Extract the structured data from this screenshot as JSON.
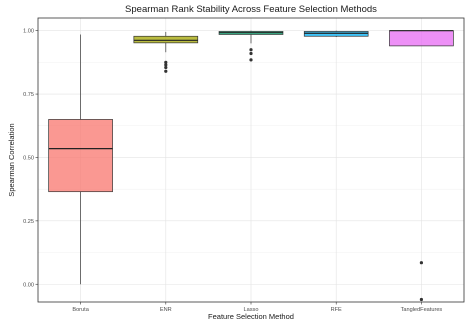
{
  "chart_data": {
    "type": "box",
    "title": "Spearman Rank Stability Across Feature Selection Methods",
    "xlabel": "Feature Selection Method",
    "ylabel": "Spearman Correlation",
    "ylim": [
      -0.07,
      1.05
    ],
    "yticks": [
      0.0,
      0.25,
      0.5,
      0.75,
      1.0
    ],
    "ytick_labels": [
      "0.00",
      "0.25",
      "0.50",
      "0.75",
      "1.00"
    ],
    "grid": true,
    "legend": "none",
    "categories": [
      "Boruta",
      "ENR",
      "Lasso",
      "RFE",
      "TangledFeatures"
    ],
    "boxes": [
      {
        "category": "Boruta",
        "min": 0.0,
        "q1": 0.365,
        "median": 0.535,
        "q3": 0.65,
        "max": 0.985,
        "outliers": [],
        "color": "#f8766d"
      },
      {
        "category": "ENR",
        "min": 0.915,
        "q1": 0.952,
        "median": 0.962,
        "q3": 0.978,
        "max": 0.995,
        "outliers": [
          0.875,
          0.865,
          0.855,
          0.84
        ],
        "color": "#a3a500"
      },
      {
        "category": "Lasso",
        "min": 0.95,
        "q1": 0.985,
        "median": 0.992,
        "q3": 0.997,
        "max": 1.0,
        "outliers": [
          0.925,
          0.91,
          0.885
        ],
        "color": "#00bf7d"
      },
      {
        "category": "RFE",
        "min": 0.975,
        "q1": 0.978,
        "median": 0.99,
        "q3": 0.997,
        "max": 1.0,
        "outliers": [],
        "color": "#00b0f6"
      },
      {
        "category": "TangledFeatures",
        "min": 0.94,
        "q1": 0.94,
        "median": 1.0,
        "q3": 1.0,
        "max": 1.0,
        "outliers": [
          0.085,
          -0.06
        ],
        "color": "#e76bf3"
      }
    ]
  }
}
